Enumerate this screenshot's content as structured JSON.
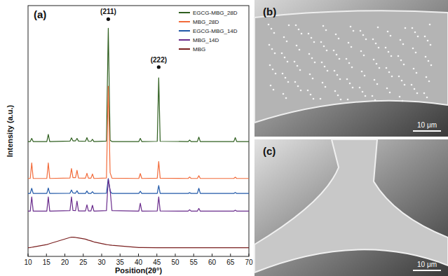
{
  "chart_data": {
    "type": "line",
    "label": "(a)",
    "x_label": "Position(2θ°)",
    "y_label": "Intensity (a.u.)",
    "x": [
      10,
      10.6,
      11,
      11.4,
      15.1,
      15.5,
      15.9,
      21.4,
      21.8,
      22.2,
      22.9,
      23.3,
      23.7,
      25.6,
      26,
      26.4,
      27.1,
      27.5,
      27.9,
      31.3,
      31.8,
      32.3,
      32.8,
      40.1,
      40.5,
      40.9,
      45.1,
      45.5,
      45.9,
      53.5,
      53.9,
      54.3,
      56.0,
      56.4,
      56.8,
      65.9,
      66.3,
      66.7,
      70
    ],
    "series": [
      {
        "name": "EGCG-MBG_28D",
        "color": "#2f5f1f",
        "values": [
          46.7,
          46.7,
          48.0,
          46.7,
          46.7,
          49.6,
          46.7,
          46.9,
          48.2,
          47.0,
          47.0,
          48.0,
          46.9,
          46.8,
          48.3,
          46.8,
          46.8,
          47.6,
          46.7,
          46.9,
          92.8,
          47.2,
          46.7,
          46.7,
          48.0,
          46.7,
          46.8,
          72.6,
          46.8,
          46.7,
          47.3,
          46.7,
          46.7,
          48.5,
          46.7,
          46.7,
          48.3,
          46.7,
          46.7
        ]
      },
      {
        "name": "MBG_28D",
        "color": "#f26b3a",
        "values": [
          31.7,
          31.7,
          38.0,
          31.7,
          31.7,
          38.0,
          31.7,
          31.9,
          35.7,
          32.0,
          32.0,
          35.0,
          31.9,
          31.8,
          33.8,
          31.8,
          31.8,
          33.5,
          31.7,
          31.9,
          69.2,
          34.0,
          31.8,
          31.7,
          33.7,
          31.7,
          31.8,
          38.6,
          31.8,
          31.7,
          32.3,
          31.7,
          31.7,
          32.8,
          31.7,
          31.7,
          32.2,
          31.7,
          31.7
        ]
      },
      {
        "name": "EGCG-MBG_14D",
        "color": "#2058a8",
        "values": [
          25.6,
          25.6,
          27.7,
          25.6,
          25.6,
          27.8,
          25.6,
          25.7,
          27.0,
          25.8,
          25.7,
          26.7,
          25.6,
          25.6,
          26.6,
          25.6,
          25.6,
          26.3,
          25.6,
          25.7,
          31.7,
          26.5,
          25.6,
          25.6,
          26.5,
          25.6,
          25.6,
          28.8,
          25.6,
          25.6,
          25.9,
          25.6,
          25.6,
          27.7,
          25.6,
          25.6,
          26.0,
          25.6,
          25.6
        ]
      },
      {
        "name": "MBG_14D",
        "color": "#6a2c8c",
        "values": [
          18.4,
          18.4,
          24.2,
          18.4,
          18.4,
          24.2,
          18.4,
          18.6,
          24.2,
          18.7,
          18.6,
          22.5,
          18.5,
          18.5,
          21.0,
          18.5,
          18.5,
          20.8,
          18.4,
          18.6,
          31.4,
          27.0,
          18.6,
          18.4,
          21.6,
          18.4,
          18.5,
          24.2,
          18.5,
          18.4,
          19.0,
          18.4,
          18.4,
          19.5,
          18.4,
          18.4,
          18.8,
          18.4,
          18.4
        ]
      },
      {
        "name": "MBG",
        "color": "#7a2020",
        "values": [
          3.5,
          3.6,
          3.7,
          3.8,
          4.8,
          5.0,
          5.2,
          7.7,
          7.8,
          7.8,
          7.7,
          7.6,
          7.5,
          7.0,
          6.8,
          6.6,
          6.3,
          6.1,
          5.9,
          4.8,
          4.7,
          4.6,
          4.5,
          3.6,
          3.6,
          3.6,
          3.5,
          3.5,
          3.5,
          3.5,
          3.5,
          3.5,
          3.5,
          3.5,
          3.5,
          3.5,
          3.5,
          3.5,
          3.5
        ]
      }
    ],
    "xlim": [
      10,
      70
    ],
    "xticks": [
      10,
      15,
      20,
      25,
      30,
      35,
      40,
      45,
      50,
      55,
      60,
      65,
      70
    ],
    "ylim": [
      0,
      102
    ],
    "yticks": [],
    "tick_labels": "x",
    "legend": "upper right",
    "annotations": [
      {
        "text": "(211)",
        "x": 31.8,
        "y": 96.5,
        "marker": "●"
      },
      {
        "text": "(222)",
        "x": 45.5,
        "y": 77
      }
    ]
  },
  "panels": [
    {
      "label": "(b)",
      "scale_bar": "10 μm"
    },
    {
      "label": "(c)",
      "scale_bar": "10 μm"
    }
  ]
}
